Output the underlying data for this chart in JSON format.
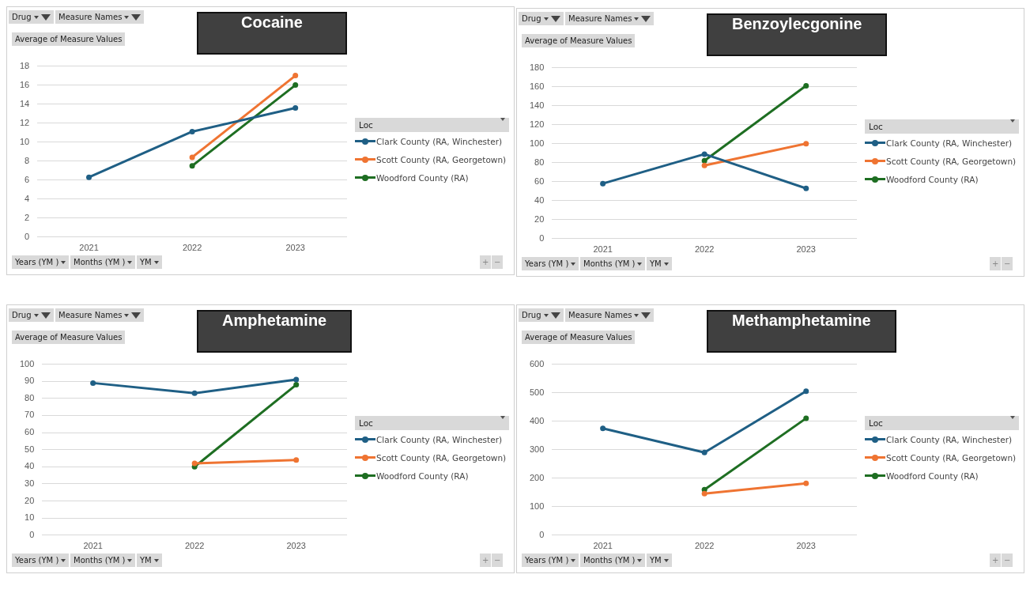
{
  "chart_data": [
    {
      "type": "line",
      "title": "Cocaine",
      "ylabel": "Average of Measure Values",
      "legend_title": "Loc",
      "categories": [
        "2021",
        "2022",
        "2023"
      ],
      "series": [
        {
          "name": "Clark County (RA, Winchester)",
          "color": "#1f5f85",
          "values": [
            6.3,
            11.1,
            13.6
          ]
        },
        {
          "name": "Scott County (RA, Georgetown)",
          "color": "#ef7432",
          "values": [
            null,
            8.4,
            17.0
          ]
        },
        {
          "name": "Woodford County (RA)",
          "color": "#1e6e22",
          "values": [
            null,
            7.5,
            16.0
          ]
        }
      ],
      "ylim": [
        0,
        18
      ],
      "yticks": [
        0,
        2,
        4,
        6,
        8,
        10,
        12,
        14,
        16,
        18
      ],
      "grid": "y",
      "legend": "right",
      "marker": "circle",
      "line_style": "solid",
      "annotations": [
        "Drug",
        "Measure Names",
        "Years (YM )",
        "Months (YM )",
        "YM",
        "+",
        "−"
      ]
    },
    {
      "type": "line",
      "title": "Benzoylecgonine",
      "ylabel": "Average of Measure Values",
      "legend_title": "Loc",
      "categories": [
        "2021",
        "2022",
        "2023"
      ],
      "series": [
        {
          "name": "Clark County (RA, Winchester)",
          "color": "#1f5f85",
          "values": [
            58,
            89,
            53
          ]
        },
        {
          "name": "Scott County (RA, Georgetown)",
          "color": "#ef7432",
          "values": [
            null,
            77,
            100
          ]
        },
        {
          "name": "Woodford County (RA)",
          "color": "#1e6e22",
          "values": [
            null,
            82,
            161
          ]
        }
      ],
      "ylim": [
        0,
        180
      ],
      "yticks": [
        0,
        20,
        40,
        60,
        80,
        100,
        120,
        140,
        160,
        180
      ],
      "grid": "y",
      "legend": "right",
      "marker": "circle",
      "line_style": "solid",
      "annotations": [
        "Drug",
        "Measure Names",
        "Years (YM )",
        "Months (YM )",
        "YM",
        "+",
        "−"
      ]
    },
    {
      "type": "line",
      "title": "Amphetamine",
      "ylabel": "Average of Measure Values",
      "legend_title": "Loc",
      "categories": [
        "2021",
        "2022",
        "2023"
      ],
      "series": [
        {
          "name": "Clark County (RA, Winchester)",
          "color": "#1f5f85",
          "values": [
            89,
            83,
            91
          ]
        },
        {
          "name": "Scott County (RA, Georgetown)",
          "color": "#ef7432",
          "values": [
            null,
            42,
            44
          ]
        },
        {
          "name": "Woodford County (RA)",
          "color": "#1e6e22",
          "values": [
            null,
            40,
            88
          ]
        }
      ],
      "ylim": [
        0,
        100
      ],
      "yticks": [
        0,
        10,
        20,
        30,
        40,
        50,
        60,
        70,
        80,
        90,
        100
      ],
      "grid": "y",
      "legend": "right",
      "marker": "circle",
      "line_style": "solid",
      "annotations": [
        "Drug",
        "Measure Names",
        "Years (YM )",
        "Months (YM )",
        "YM",
        "+",
        "−"
      ]
    },
    {
      "type": "line",
      "title": "Methamphetamine",
      "ylabel": "Average of Measure Values",
      "legend_title": "Loc",
      "categories": [
        "2021",
        "2022",
        "2023"
      ],
      "series": [
        {
          "name": "Clark County (RA, Winchester)",
          "color": "#1f5f85",
          "values": [
            375,
            290,
            505
          ]
        },
        {
          "name": "Scott County (RA, Georgetown)",
          "color": "#ef7432",
          "values": [
            null,
            146,
            182
          ]
        },
        {
          "name": "Woodford County (RA)",
          "color": "#1e6e22",
          "values": [
            null,
            160,
            410
          ]
        }
      ],
      "ylim": [
        0,
        600
      ],
      "yticks": [
        0,
        100,
        200,
        300,
        400,
        500,
        600
      ],
      "grid": "y",
      "legend": "right",
      "marker": "circle",
      "line_style": "solid",
      "annotations": [
        "Drug",
        "Measure Names",
        "Years (YM )",
        "Months (YM )",
        "YM",
        "+",
        "−"
      ]
    }
  ]
}
